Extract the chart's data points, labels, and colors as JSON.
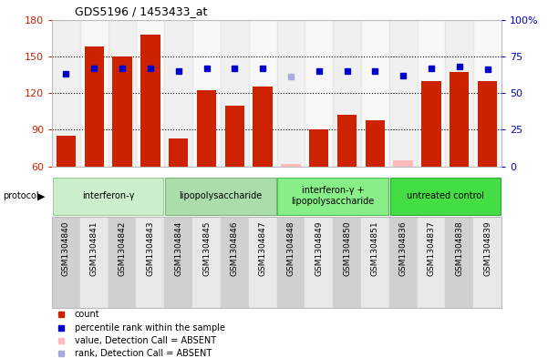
{
  "title": "GDS5196 / 1453433_at",
  "samples": [
    "GSM1304840",
    "GSM1304841",
    "GSM1304842",
    "GSM1304843",
    "GSM1304844",
    "GSM1304845",
    "GSM1304846",
    "GSM1304847",
    "GSM1304848",
    "GSM1304849",
    "GSM1304850",
    "GSM1304851",
    "GSM1304836",
    "GSM1304837",
    "GSM1304838",
    "GSM1304839"
  ],
  "bar_values": [
    85,
    158,
    150,
    168,
    83,
    122,
    110,
    125,
    62,
    90,
    102,
    98,
    65,
    130,
    137,
    130
  ],
  "bar_absent": [
    false,
    false,
    false,
    false,
    false,
    false,
    false,
    false,
    true,
    false,
    false,
    false,
    true,
    false,
    false,
    false
  ],
  "rank_values": [
    63,
    67,
    67,
    67,
    65,
    67,
    67,
    67,
    61,
    65,
    65,
    65,
    62,
    67,
    68,
    66
  ],
  "rank_absent": [
    false,
    false,
    false,
    false,
    false,
    false,
    false,
    false,
    true,
    false,
    false,
    false,
    false,
    false,
    false,
    false
  ],
  "ylim_left": [
    60,
    180
  ],
  "ylim_right": [
    0,
    100
  ],
  "yticks_left": [
    60,
    90,
    120,
    150,
    180
  ],
  "yticks_right": [
    0,
    25,
    50,
    75,
    100
  ],
  "ytick_labels_right": [
    "0",
    "25",
    "50",
    "75",
    "100%"
  ],
  "protocols": [
    {
      "label": "interferon-γ",
      "start": 0,
      "end": 4,
      "color": "#cceecc"
    },
    {
      "label": "lipopolysaccharide",
      "start": 4,
      "end": 8,
      "color": "#aaddaa"
    },
    {
      "label": "interferon-γ +\nlipopolysaccharide",
      "start": 8,
      "end": 12,
      "color": "#88ee88"
    },
    {
      "label": "untreated control",
      "start": 12,
      "end": 16,
      "color": "#44dd44"
    }
  ],
  "bar_color": "#cc2200",
  "bar_absent_color": "#ffbbbb",
  "rank_color": "#0000cc",
  "rank_absent_color": "#aaaadd",
  "protocol_label": "protocol",
  "legend_items": [
    {
      "label": "count",
      "color": "#cc2200"
    },
    {
      "label": "percentile rank within the sample",
      "color": "#0000cc"
    },
    {
      "label": "value, Detection Call = ABSENT",
      "color": "#ffbbbb"
    },
    {
      "label": "rank, Detection Call = ABSENT",
      "color": "#aaaadd"
    }
  ]
}
